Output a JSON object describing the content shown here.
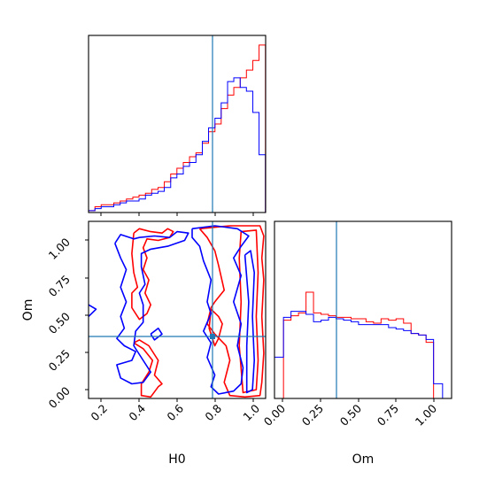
{
  "chart_data": {
    "type": "corner",
    "parameters": [
      "H0",
      "Om"
    ],
    "truth": {
      "H0": 0.795,
      "Om": 0.355
    },
    "colors": {
      "series_1": "#ff0000",
      "series_2": "#0000ff",
      "truth": "#1f77b4"
    },
    "panels": [
      {
        "id": "H0-marginal",
        "type": "histogram",
        "xlim": [
          0.13,
          1.07
        ],
        "x_bin_edges": [
          0.13,
          0.164,
          0.197,
          0.231,
          0.264,
          0.298,
          0.331,
          0.365,
          0.398,
          0.432,
          0.465,
          0.499,
          0.532,
          0.566,
          0.599,
          0.633,
          0.666,
          0.7,
          0.734,
          0.767,
          0.801,
          0.834,
          0.868,
          0.901,
          0.935,
          0.968,
          1.002,
          1.035,
          1.069
        ],
        "series": [
          {
            "color": "red",
            "values": [
              1,
              3,
              4,
              4,
              5,
              6,
              7,
              8,
              9,
              10,
              12,
              13,
              16,
              20,
              23,
              26,
              29,
              31,
              36,
              42,
              46,
              54,
              61,
              65,
              70,
              74,
              79,
              87
            ]
          },
          {
            "color": "blue",
            "values": [
              1,
              2,
              3,
              3,
              4,
              5,
              6,
              6,
              7,
              9,
              10,
              11,
              13,
              18,
              20,
              24,
              26,
              30,
              37,
              44,
              49,
              57,
              68,
              70,
              65,
              63,
              52,
              30
            ]
          }
        ],
        "ylim": [
          0,
          92
        ]
      },
      {
        "id": "Om-marginal",
        "type": "histogram",
        "xlim": [
          -0.06,
          1.12
        ],
        "x_bin_edges": [
          -0.06,
          0.0,
          0.05,
          0.1,
          0.15,
          0.2,
          0.25,
          0.3,
          0.35,
          0.4,
          0.45,
          0.5,
          0.55,
          0.6,
          0.65,
          0.7,
          0.75,
          0.8,
          0.85,
          0.9,
          0.95,
          1.0,
          1.06,
          1.12
        ],
        "series": [
          {
            "color": "red",
            "values": [
              0,
              53,
              56,
              58,
              72,
              58,
              57,
              56,
              55,
              55,
              54,
              54,
              52,
              51,
              54,
              53,
              54,
              51,
              44,
              43,
              38,
              0,
              0
            ]
          },
          {
            "color": "blue",
            "values": [
              28,
              55,
              59,
              59,
              57,
              52,
              53,
              55,
              54,
              53,
              52,
              50,
              50,
              50,
              50,
              48,
              47,
              46,
              44,
              43,
              40,
              10,
              0
            ]
          }
        ],
        "ylim": [
          0,
          120
        ]
      },
      {
        "id": "joint",
        "type": "contour",
        "xlabel": "H0",
        "ylabel": "Om",
        "xlim": [
          0.13,
          1.07
        ],
        "ylim": [
          -0.06,
          1.15
        ],
        "x_ticks": [
          "0.2",
          "0.4",
          "0.6",
          "0.8",
          "1.0"
        ],
        "y_ticks": [
          "0.00",
          "0.25",
          "0.50",
          "0.75",
          "1.00"
        ],
        "contours": [
          {
            "color": "red",
            "level": "outer",
            "points": [
              [
                0.37,
                1.07
              ],
              [
                0.4,
                1.1
              ],
              [
                0.46,
                1.08
              ],
              [
                0.52,
                1.07
              ],
              [
                0.55,
                1.1
              ],
              [
                0.58,
                1.08
              ],
              [
                0.56,
                1.04
              ],
              [
                0.5,
                1.02
              ],
              [
                0.44,
                1.03
              ],
              [
                0.42,
                0.97
              ],
              [
                0.44,
                0.9
              ],
              [
                0.42,
                0.82
              ],
              [
                0.45,
                0.75
              ],
              [
                0.43,
                0.66
              ],
              [
                0.46,
                0.58
              ],
              [
                0.44,
                0.52
              ],
              [
                0.4,
                0.48
              ],
              [
                0.36,
                0.56
              ],
              [
                0.36,
                0.66
              ],
              [
                0.39,
                0.7
              ],
              [
                0.37,
                0.8
              ],
              [
                0.36,
                0.93
              ],
              [
                0.37,
                1.07
              ]
            ]
          },
          {
            "color": "red",
            "level": "outer",
            "points": [
              [
                0.37,
                0.32
              ],
              [
                0.42,
                0.28
              ],
              [
                0.47,
                0.2
              ],
              [
                0.45,
                0.12
              ],
              [
                0.41,
                0.04
              ],
              [
                0.41,
                -0.04
              ],
              [
                0.46,
                -0.05
              ],
              [
                0.5,
                0.02
              ],
              [
                0.52,
                0.04
              ],
              [
                0.48,
                0.1
              ],
              [
                0.5,
                0.2
              ],
              [
                0.45,
                0.3
              ],
              [
                0.4,
                0.34
              ],
              [
                0.37,
                0.32
              ]
            ]
          },
          {
            "color": "red",
            "level": "outer",
            "points": [
              [
                0.72,
                1.1
              ],
              [
                0.88,
                1.12
              ],
              [
                1.04,
                1.12
              ],
              [
                1.06,
                1.05
              ],
              [
                1.05,
                0.9
              ],
              [
                1.06,
                0.75
              ],
              [
                1.05,
                0.5
              ],
              [
                1.06,
                0.25
              ],
              [
                1.05,
                0.05
              ],
              [
                1.04,
                -0.04
              ],
              [
                0.96,
                -0.05
              ],
              [
                0.88,
                -0.04
              ],
              [
                0.85,
                0.05
              ],
              [
                0.88,
                0.2
              ],
              [
                0.86,
                0.3
              ],
              [
                0.8,
                0.38
              ],
              [
                0.76,
                0.45
              ],
              [
                0.78,
                0.56
              ],
              [
                0.8,
                0.6
              ],
              [
                0.85,
                0.68
              ],
              [
                0.82,
                0.85
              ],
              [
                0.8,
                0.95
              ],
              [
                0.76,
                1.04
              ],
              [
                0.72,
                1.1
              ]
            ]
          },
          {
            "color": "red",
            "level": "inner",
            "points": [
              [
                0.94,
                1.08
              ],
              [
                1.02,
                1.09
              ],
              [
                1.03,
                0.8
              ],
              [
                1.02,
                0.5
              ],
              [
                1.03,
                0.2
              ],
              [
                1.02,
                0.0
              ],
              [
                0.95,
                -0.02
              ],
              [
                0.93,
                0.3
              ],
              [
                0.94,
                0.6
              ],
              [
                0.93,
                0.9
              ],
              [
                0.94,
                1.08
              ]
            ]
          },
          {
            "color": "red",
            "level": "inner",
            "points": [
              [
                0.78,
                0.55
              ],
              [
                0.82,
                0.5
              ],
              [
                0.84,
                0.45
              ],
              [
                0.82,
                0.35
              ],
              [
                0.8,
                0.3
              ],
              [
                0.77,
                0.42
              ],
              [
                0.78,
                0.55
              ]
            ]
          },
          {
            "color": "blue",
            "level": "outer",
            "points": [
              [
                0.27,
                1.0
              ],
              [
                0.3,
                1.06
              ],
              [
                0.37,
                1.03
              ],
              [
                0.4,
                1.04
              ],
              [
                0.48,
                1.05
              ],
              [
                0.56,
                1.04
              ],
              [
                0.6,
                1.08
              ],
              [
                0.66,
                1.07
              ],
              [
                0.64,
                1.02
              ],
              [
                0.55,
                0.98
              ],
              [
                0.46,
                0.96
              ],
              [
                0.41,
                0.93
              ],
              [
                0.41,
                0.84
              ],
              [
                0.43,
                0.72
              ],
              [
                0.4,
                0.66
              ],
              [
                0.42,
                0.58
              ],
              [
                0.42,
                0.46
              ],
              [
                0.38,
                0.4
              ],
              [
                0.37,
                0.3
              ],
              [
                0.42,
                0.2
              ],
              [
                0.46,
                0.12
              ],
              [
                0.42,
                0.05
              ],
              [
                0.36,
                0.04
              ],
              [
                0.3,
                0.08
              ],
              [
                0.28,
                0.17
              ],
              [
                0.36,
                0.2
              ],
              [
                0.38,
                0.26
              ],
              [
                0.32,
                0.3
              ],
              [
                0.28,
                0.35
              ],
              [
                0.32,
                0.42
              ],
              [
                0.3,
                0.5
              ],
              [
                0.33,
                0.6
              ],
              [
                0.3,
                0.7
              ],
              [
                0.33,
                0.82
              ],
              [
                0.3,
                0.9
              ],
              [
                0.27,
                1.0
              ]
            ]
          },
          {
            "color": "blue",
            "level": "outer",
            "points": [
              [
                0.68,
                1.1
              ],
              [
                0.8,
                1.12
              ],
              [
                0.92,
                1.1
              ],
              [
                0.98,
                1.05
              ],
              [
                0.94,
                0.98
              ],
              [
                0.9,
                0.9
              ],
              [
                0.94,
                0.78
              ],
              [
                0.9,
                0.6
              ],
              [
                0.94,
                0.45
              ],
              [
                0.92,
                0.3
              ],
              [
                0.95,
                0.15
              ],
              [
                0.94,
                0.04
              ],
              [
                0.9,
                -0.01
              ],
              [
                0.82,
                -0.03
              ],
              [
                0.78,
                0.02
              ],
              [
                0.8,
                0.1
              ],
              [
                0.76,
                0.22
              ],
              [
                0.78,
                0.32
              ],
              [
                0.74,
                0.4
              ],
              [
                0.78,
                0.52
              ],
              [
                0.76,
                0.6
              ],
              [
                0.78,
                0.75
              ],
              [
                0.74,
                0.88
              ],
              [
                0.72,
                0.98
              ],
              [
                0.68,
                1.04
              ],
              [
                0.68,
                1.1
              ]
            ]
          },
          {
            "color": "blue",
            "level": "inner",
            "points": [
              [
                0.96,
                0.92
              ],
              [
                0.99,
                0.95
              ],
              [
                1.01,
                0.8
              ],
              [
                1.0,
                0.5
              ],
              [
                1.01,
                0.2
              ],
              [
                1.0,
                0.0
              ],
              [
                0.97,
                -0.02
              ],
              [
                0.97,
                0.3
              ],
              [
                0.98,
                0.6
              ],
              [
                0.96,
                0.92
              ]
            ]
          },
          {
            "color": "blue",
            "level": "inner",
            "points": [
              [
                0.46,
                0.38
              ],
              [
                0.5,
                0.42
              ],
              [
                0.52,
                0.38
              ],
              [
                0.48,
                0.34
              ],
              [
                0.46,
                0.38
              ]
            ]
          },
          {
            "color": "blue",
            "level": "inner",
            "points": [
              [
                0.13,
                0.58
              ],
              [
                0.17,
                0.55
              ],
              [
                0.13,
                0.5
              ]
            ]
          }
        ]
      }
    ]
  }
}
